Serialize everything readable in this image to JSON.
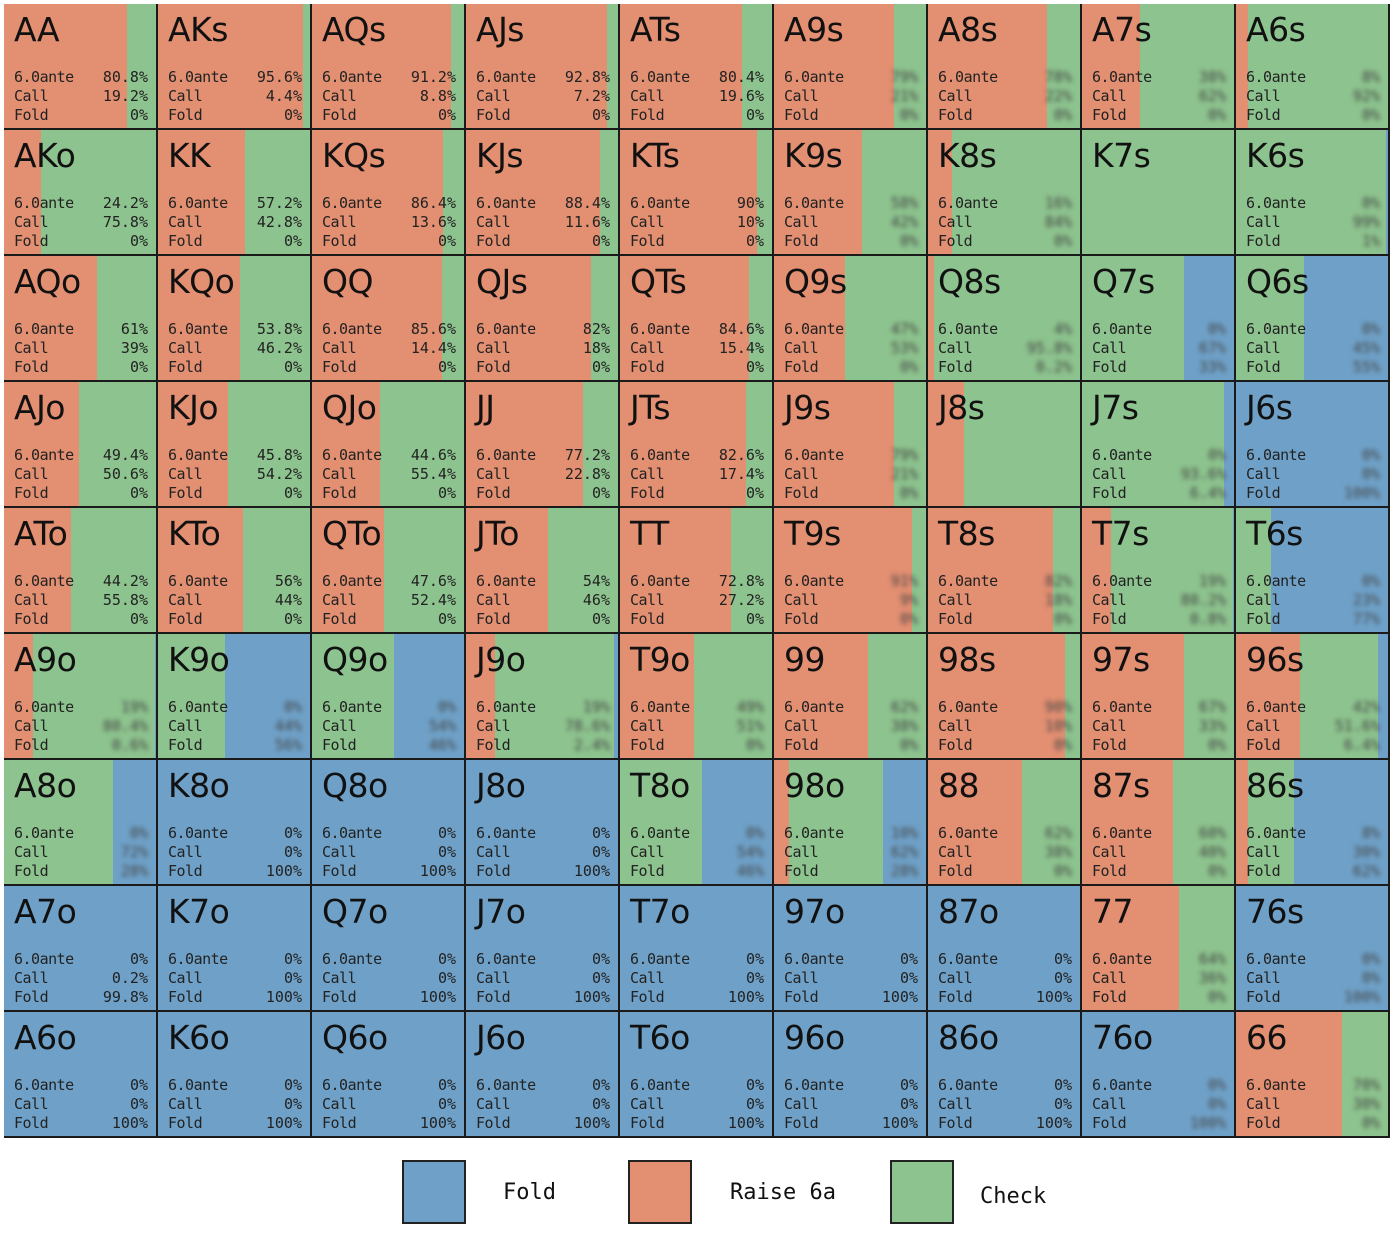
{
  "chart_data": {
    "type": "heatmap",
    "row_labels": "",
    "colors": {
      "fold": "#6fa1c8",
      "raise": "#e28f72",
      "check": "#8dc38e"
    },
    "legend": [
      {
        "key": "fold",
        "label": "Fold"
      },
      {
        "key": "raise",
        "label": "Raise 6a"
      },
      {
        "key": "check",
        "label": "Check"
      }
    ],
    "row_names": [
      "6.0ante",
      "Call",
      "Fold"
    ],
    "cells": [
      [
        {
          "hand": "AA",
          "fold": 0,
          "raise": 0.808,
          "check": 0.192,
          "v": [
            "80.8%",
            "19.2%",
            "0%"
          ]
        },
        {
          "hand": "AKs",
          "fold": 0,
          "raise": 0.956,
          "check": 0.044,
          "v": [
            "95.6%",
            "4.4%",
            "0%"
          ]
        },
        {
          "hand": "AQs",
          "fold": 0,
          "raise": 0.912,
          "check": 0.088,
          "v": [
            "91.2%",
            "8.8%",
            "0%"
          ]
        },
        {
          "hand": "AJs",
          "fold": 0,
          "raise": 0.928,
          "check": 0.072,
          "v": [
            "92.8%",
            "7.2%",
            "0%"
          ]
        },
        {
          "hand": "ATs",
          "fold": 0,
          "raise": 0.804,
          "check": 0.196,
          "v": [
            "80.4%",
            "19.6%",
            "0%"
          ]
        },
        {
          "hand": "A9s",
          "fold": 0,
          "raise": 0.79,
          "check": 0.21,
          "blur": true
        },
        {
          "hand": "A8s",
          "fold": 0,
          "raise": 0.78,
          "check": 0.22,
          "blur": true
        },
        {
          "hand": "A7s",
          "fold": 0,
          "raise": 0.38,
          "check": 0.62,
          "blur": true
        },
        {
          "hand": "A6s",
          "fold": 0,
          "raise": 0.08,
          "check": 0.92,
          "blur": true
        }
      ],
      [
        {
          "hand": "AKo",
          "fold": 0,
          "raise": 0.242,
          "check": 0.758,
          "v": [
            "24.2%",
            "75.8%",
            "0%"
          ]
        },
        {
          "hand": "KK",
          "fold": 0,
          "raise": 0.572,
          "check": 0.428,
          "v": [
            "57.2%",
            "42.8%",
            "0%"
          ]
        },
        {
          "hand": "KQs",
          "fold": 0,
          "raise": 0.864,
          "check": 0.136,
          "v": [
            "86.4%",
            "13.6%",
            "0%"
          ]
        },
        {
          "hand": "KJs",
          "fold": 0,
          "raise": 0.884,
          "check": 0.116,
          "v": [
            "88.4%",
            "11.6%",
            "0%"
          ]
        },
        {
          "hand": "KTs",
          "fold": 0,
          "raise": 0.9,
          "check": 0.1,
          "v": [
            "90%",
            "10%",
            "0%"
          ]
        },
        {
          "hand": "K9s",
          "fold": 0,
          "raise": 0.58,
          "check": 0.42,
          "blur": true
        },
        {
          "hand": "K8s",
          "fold": 0,
          "raise": 0.16,
          "check": 0.84,
          "blur": true
        },
        {
          "hand": "K7s",
          "fold": 0,
          "raise": 0,
          "check": 1,
          "hide": true
        },
        {
          "hand": "K6s",
          "fold": 0.01,
          "raise": 0,
          "check": 0.99,
          "blur": true
        }
      ],
      [
        {
          "hand": "AQo",
          "fold": 0,
          "raise": 0.61,
          "check": 0.39,
          "v": [
            "61%",
            "39%",
            "0%"
          ]
        },
        {
          "hand": "KQo",
          "fold": 0,
          "raise": 0.538,
          "check": 0.462,
          "v": [
            "53.8%",
            "46.2%",
            "0%"
          ]
        },
        {
          "hand": "QQ",
          "fold": 0,
          "raise": 0.856,
          "check": 0.144,
          "v": [
            "85.6%",
            "14.4%",
            "0%"
          ]
        },
        {
          "hand": "QJs",
          "fold": 0,
          "raise": 0.82,
          "check": 0.18,
          "v": [
            "82%",
            "18%",
            "0%"
          ]
        },
        {
          "hand": "QTs",
          "fold": 0,
          "raise": 0.846,
          "check": 0.154,
          "v": [
            "84.6%",
            "15.4%",
            "0%"
          ]
        },
        {
          "hand": "Q9s",
          "fold": 0,
          "raise": 0.47,
          "check": 0.53,
          "blur": true
        },
        {
          "hand": "Q8s",
          "fold": 0.002,
          "raise": 0.04,
          "check": 0.958,
          "blur": true
        },
        {
          "hand": "Q7s",
          "fold": 0.33,
          "raise": 0,
          "check": 0.67,
          "blur": true
        },
        {
          "hand": "Q6s",
          "fold": 0.55,
          "raise": 0,
          "check": 0.45,
          "blur": true
        }
      ],
      [
        {
          "hand": "AJo",
          "fold": 0,
          "raise": 0.494,
          "check": 0.506,
          "v": [
            "49.4%",
            "50.6%",
            "0%"
          ]
        },
        {
          "hand": "KJo",
          "fold": 0,
          "raise": 0.458,
          "check": 0.542,
          "v": [
            "45.8%",
            "54.2%",
            "0%"
          ]
        },
        {
          "hand": "QJo",
          "fold": 0,
          "raise": 0.446,
          "check": 0.554,
          "v": [
            "44.6%",
            "55.4%",
            "0%"
          ]
        },
        {
          "hand": "JJ",
          "fold": 0,
          "raise": 0.772,
          "check": 0.228,
          "v": [
            "77.2%",
            "22.8%",
            "0%"
          ]
        },
        {
          "hand": "JTs",
          "fold": 0,
          "raise": 0.826,
          "check": 0.174,
          "v": [
            "82.6%",
            "17.4%",
            "0%"
          ]
        },
        {
          "hand": "J9s",
          "fold": 0,
          "raise": 0.79,
          "check": 0.21,
          "blur": true
        },
        {
          "hand": "J8s",
          "fold": 0,
          "raise": 0.24,
          "check": 0.76,
          "hide": true
        },
        {
          "hand": "J7s",
          "fold": 0.064,
          "raise": 0,
          "check": 0.936,
          "blur": true
        },
        {
          "hand": "J6s",
          "fold": 1,
          "raise": 0,
          "check": 0,
          "blur": true
        }
      ],
      [
        {
          "hand": "ATo",
          "fold": 0,
          "raise": 0.442,
          "check": 0.558,
          "v": [
            "44.2%",
            "55.8%",
            "0%"
          ]
        },
        {
          "hand": "KTo",
          "fold": 0,
          "raise": 0.56,
          "check": 0.44,
          "v": [
            "56%",
            "44%",
            "0%"
          ]
        },
        {
          "hand": "QTo",
          "fold": 0,
          "raise": 0.476,
          "check": 0.524,
          "v": [
            "47.6%",
            "52.4%",
            "0%"
          ]
        },
        {
          "hand": "JTo",
          "fold": 0,
          "raise": 0.54,
          "check": 0.46,
          "v": [
            "54%",
            "46%",
            "0%"
          ]
        },
        {
          "hand": "TT",
          "fold": 0,
          "raise": 0.728,
          "check": 0.272,
          "v": [
            "72.8%",
            "27.2%",
            "0%"
          ]
        },
        {
          "hand": "T9s",
          "fold": 0,
          "raise": 0.91,
          "check": 0.09,
          "blur": true
        },
        {
          "hand": "T8s",
          "fold": 0,
          "raise": 0.82,
          "check": 0.18,
          "blur": true
        },
        {
          "hand": "T7s",
          "fold": 0.008,
          "raise": 0.19,
          "check": 0.802,
          "blur": true
        },
        {
          "hand": "T6s",
          "fold": 0.77,
          "raise": 0,
          "check": 0.23,
          "blur": true
        }
      ],
      [
        {
          "hand": "A9o",
          "fold": 0.006,
          "raise": 0.19,
          "check": 0.804,
          "blur": true
        },
        {
          "hand": "K9o",
          "fold": 0.56,
          "raise": 0,
          "check": 0.44,
          "blur": true
        },
        {
          "hand": "Q9o",
          "fold": 0.46,
          "raise": 0,
          "check": 0.54,
          "blur": true
        },
        {
          "hand": "J9o",
          "fold": 0.024,
          "raise": 0.19,
          "check": 0.786,
          "blur": true
        },
        {
          "hand": "T9o",
          "fold": 0,
          "raise": 0.49,
          "check": 0.51,
          "blur": true
        },
        {
          "hand": "99",
          "fold": 0,
          "raise": 0.62,
          "check": 0.38,
          "blur": true
        },
        {
          "hand": "98s",
          "fold": 0,
          "raise": 0.9,
          "check": 0.1,
          "blur": true
        },
        {
          "hand": "97s",
          "fold": 0,
          "raise": 0.67,
          "check": 0.33,
          "blur": true
        },
        {
          "hand": "96s",
          "fold": 0.064,
          "raise": 0.42,
          "check": 0.516,
          "blur": true
        }
      ],
      [
        {
          "hand": "A8o",
          "fold": 0.28,
          "raise": 0,
          "check": 0.72,
          "blur": true
        },
        {
          "hand": "K8o",
          "fold": 1,
          "raise": 0,
          "check": 0,
          "v": [
            "0%",
            "0%",
            "100%"
          ]
        },
        {
          "hand": "Q8o",
          "fold": 1,
          "raise": 0,
          "check": 0,
          "v": [
            "0%",
            "0%",
            "100%"
          ]
        },
        {
          "hand": "J8o",
          "fold": 1,
          "raise": 0,
          "check": 0,
          "v": [
            "0%",
            "0%",
            "100%"
          ]
        },
        {
          "hand": "T8o",
          "fold": 0.46,
          "raise": 0,
          "check": 0.54,
          "blur": true
        },
        {
          "hand": "98o",
          "fold": 0.28,
          "raise": 0.1,
          "check": 0.62,
          "blur": true
        },
        {
          "hand": "88",
          "fold": 0,
          "raise": 0.62,
          "check": 0.38,
          "blur": true
        },
        {
          "hand": "87s",
          "fold": 0,
          "raise": 0.6,
          "check": 0.4,
          "blur": true
        },
        {
          "hand": "86s",
          "fold": 0.62,
          "raise": 0.08,
          "check": 0.3,
          "blur": true
        }
      ],
      [
        {
          "hand": "A7o",
          "fold": 0.998,
          "raise": 0,
          "check": 0.002,
          "v": [
            "0%",
            "0.2%",
            "99.8%"
          ]
        },
        {
          "hand": "K7o",
          "fold": 1,
          "raise": 0,
          "check": 0,
          "v": [
            "0%",
            "0%",
            "100%"
          ]
        },
        {
          "hand": "Q7o",
          "fold": 1,
          "raise": 0,
          "check": 0,
          "v": [
            "0%",
            "0%",
            "100%"
          ]
        },
        {
          "hand": "J7o",
          "fold": 1,
          "raise": 0,
          "check": 0,
          "v": [
            "0%",
            "0%",
            "100%"
          ]
        },
        {
          "hand": "T7o",
          "fold": 1,
          "raise": 0,
          "check": 0,
          "v": [
            "0%",
            "0%",
            "100%"
          ]
        },
        {
          "hand": "97o",
          "fold": 1,
          "raise": 0,
          "check": 0,
          "v": [
            "0%",
            "0%",
            "100%"
          ]
        },
        {
          "hand": "87o",
          "fold": 1,
          "raise": 0,
          "check": 0,
          "v": [
            "0%",
            "0%",
            "100%"
          ]
        },
        {
          "hand": "77",
          "fold": 0,
          "raise": 0.64,
          "check": 0.36,
          "blur": true
        },
        {
          "hand": "76s",
          "fold": 1,
          "raise": 0,
          "check": 0,
          "blur": true
        }
      ],
      [
        {
          "hand": "A6o",
          "fold": 1,
          "raise": 0,
          "check": 0,
          "v": [
            "0%",
            "0%",
            "100%"
          ]
        },
        {
          "hand": "K6o",
          "fold": 1,
          "raise": 0,
          "check": 0,
          "v": [
            "0%",
            "0%",
            "100%"
          ]
        },
        {
          "hand": "Q6o",
          "fold": 1,
          "raise": 0,
          "check": 0,
          "v": [
            "0%",
            "0%",
            "100%"
          ]
        },
        {
          "hand": "J6o",
          "fold": 1,
          "raise": 0,
          "check": 0,
          "v": [
            "0%",
            "0%",
            "100%"
          ]
        },
        {
          "hand": "T6o",
          "fold": 1,
          "raise": 0,
          "check": 0,
          "v": [
            "0%",
            "0%",
            "100%"
          ]
        },
        {
          "hand": "96o",
          "fold": 1,
          "raise": 0,
          "check": 0,
          "v": [
            "0%",
            "0%",
            "100%"
          ]
        },
        {
          "hand": "86o",
          "fold": 1,
          "raise": 0,
          "check": 0,
          "v": [
            "0%",
            "0%",
            "100%"
          ]
        },
        {
          "hand": "76o",
          "fold": 1,
          "raise": 0,
          "check": 0,
          "blur": true
        },
        {
          "hand": "66",
          "fold": 0,
          "raise": 0.7,
          "check": 0.3,
          "blur": true
        }
      ]
    ]
  }
}
